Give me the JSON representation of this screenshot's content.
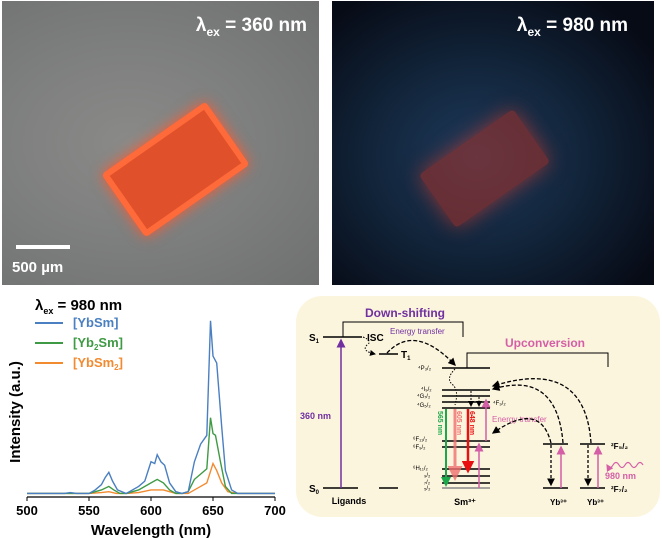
{
  "photos": [
    {
      "lambda_symbol": "λ",
      "subscript": "ex",
      "value": " = 360 nm",
      "scale_bar": "500 µm"
    },
    {
      "lambda_symbol": "λ",
      "subscript": "ex",
      "value": " = 980 nm"
    }
  ],
  "chart_data": {
    "type": "line",
    "xlabel": "Wavelength (nm)",
    "ylabel": "Intensity (a.u.)",
    "xlim": [
      500,
      700
    ],
    "ylim": [
      0,
      1.05
    ],
    "xticks": [
      500,
      550,
      600,
      650,
      700
    ],
    "grid": false,
    "legend_title": {
      "symbol": "λ",
      "subscript": "ex",
      "text": " = 980 nm"
    },
    "legend_placement": "top-left",
    "series": [
      {
        "name": "[YbSm]",
        "color": "#4a7fc1",
        "x": [
          500,
          530,
          535,
          540,
          550,
          555,
          560,
          563,
          566,
          569,
          573,
          580,
          590,
          595,
          600,
          603,
          605,
          608,
          611,
          615,
          620,
          625,
          630,
          635,
          640,
          645,
          648,
          650,
          653,
          657,
          660,
          665,
          670,
          700
        ],
        "y": [
          0.02,
          0.02,
          0.025,
          0.02,
          0.02,
          0.04,
          0.07,
          0.11,
          0.14,
          0.09,
          0.04,
          0.02,
          0.06,
          0.09,
          0.2,
          0.19,
          0.24,
          0.2,
          0.18,
          0.08,
          0.03,
          0.02,
          0.03,
          0.2,
          0.3,
          0.35,
          1.0,
          0.8,
          0.76,
          0.4,
          0.15,
          0.04,
          0.02,
          0.02
        ]
      },
      {
        "name": "[Yb2Sm]",
        "color": "#3e9a44",
        "x": [
          500,
          550,
          555,
          560,
          566,
          570,
          575,
          580,
          590,
          600,
          605,
          610,
          615,
          620,
          625,
          630,
          635,
          640,
          645,
          648,
          650,
          652,
          656,
          660,
          665,
          670,
          700
        ],
        "y": [
          0.02,
          0.02,
          0.03,
          0.04,
          0.06,
          0.04,
          0.02,
          0.02,
          0.04,
          0.08,
          0.1,
          0.08,
          0.04,
          0.02,
          0.02,
          0.03,
          0.1,
          0.13,
          0.16,
          0.45,
          0.36,
          0.35,
          0.2,
          0.06,
          0.02,
          0.02,
          0.02
        ]
      },
      {
        "name": "[YbSm2]",
        "color": "#f28a30",
        "x": [
          500,
          550,
          560,
          566,
          572,
          580,
          590,
          600,
          605,
          610,
          615,
          620,
          630,
          635,
          640,
          645,
          650,
          653,
          657,
          662,
          670,
          700
        ],
        "y": [
          0.02,
          0.02,
          0.025,
          0.03,
          0.02,
          0.02,
          0.025,
          0.04,
          0.04,
          0.04,
          0.03,
          0.02,
          0.02,
          0.04,
          0.06,
          0.08,
          0.19,
          0.15,
          0.08,
          0.03,
          0.02,
          0.02
        ]
      }
    ]
  },
  "diagram": {
    "down_shifting": "Down-shifting",
    "upconversion": "Upconversion",
    "energy_transfer_1": "Energy transfer",
    "energy_transfer_2": "Energy transfer",
    "isc": "ISC",
    "s1": "S",
    "s1_sub": "1",
    "t1": "T",
    "t1_sub": "1",
    "s0": "S",
    "s0_sub": "0",
    "ligands": "Ligands",
    "excitation_uv": "360 nm",
    "excitation_nir": "980 nm",
    "sm": "Sm³⁺",
    "yb1": "Yb³⁺",
    "yb2": "Yb³⁺",
    "yb_upper": "²F₅/₂",
    "yb_lower": "²F₇/₂",
    "sm_levels": [
      "⁴P₃/₂",
      "⁴I₉/₂",
      "⁴G₇/₂",
      "⁴G₅/₂",
      "⁴F₃/₂",
      "⁶F₁₁/₂",
      "⁶F₉/₂",
      "⁶H₁₁/₂",
      "₉/₂",
      "₇/₂",
      "₅/₂"
    ],
    "emission_1": "565 nm",
    "emission_2": "605 nm",
    "emission_3": "648 nm",
    "colors": {
      "purple": "#7030a0",
      "pink": "#d45fa6",
      "green": "#1aa84a",
      "red": "#e81010",
      "light_red": "#f07070",
      "panel": "#fcf5de"
    }
  }
}
